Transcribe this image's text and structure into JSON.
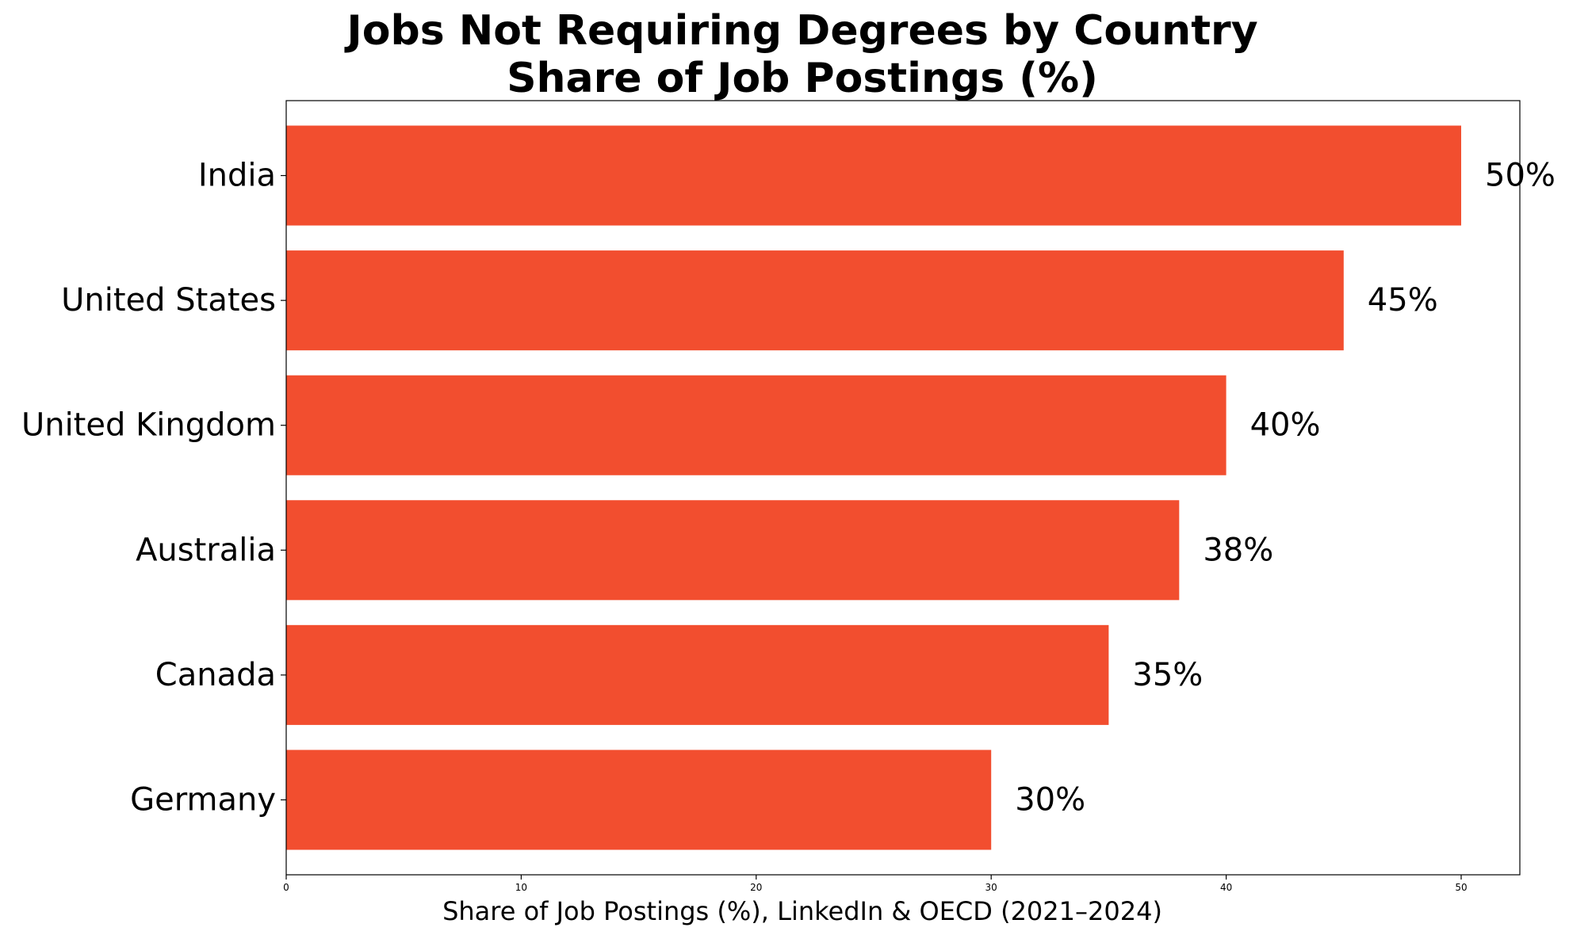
{
  "chart_data": {
    "type": "bar",
    "orientation": "horizontal",
    "title_lines": [
      "Jobs Not Requiring Degrees by Country",
      "Share of Job Postings (%)"
    ],
    "xlabel": "Share of Job Postings (%), LinkedIn & OECD (2021–2024)",
    "ylabel": "",
    "categories": [
      "India",
      "United States",
      "United Kingdom",
      "Australia",
      "Canada",
      "Germany"
    ],
    "values": [
      50,
      45,
      40,
      38,
      35,
      30
    ],
    "data_labels": [
      "50%",
      "45%",
      "40%",
      "38%",
      "35%",
      "30%"
    ],
    "xlim": [
      0,
      52.5
    ],
    "xticks": [
      0,
      10,
      20,
      30,
      40,
      50
    ],
    "xtick_labels": [
      "0",
      "10",
      "20",
      "30",
      "40",
      "50"
    ],
    "bar_color": "#f24e2f",
    "grid": false,
    "legend": "none"
  }
}
